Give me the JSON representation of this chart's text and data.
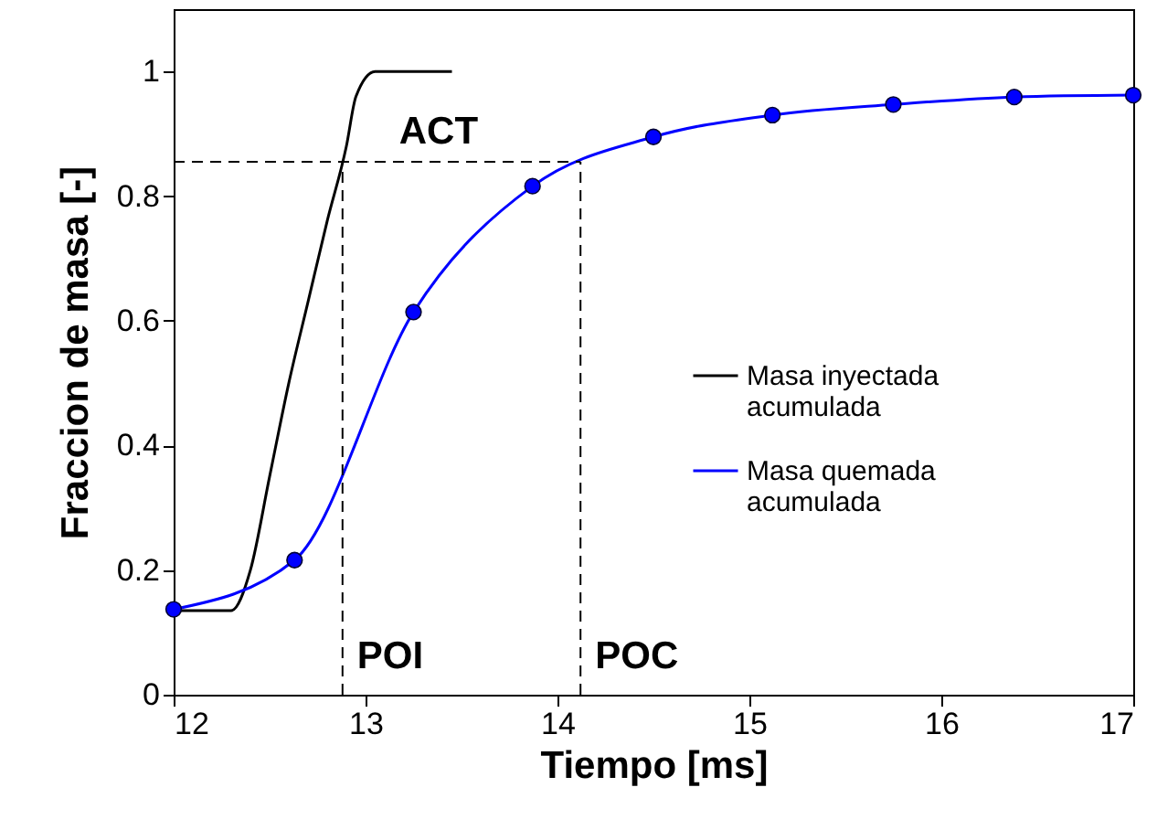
{
  "chart_data": {
    "type": "line",
    "xlabel": "Tiempo [ms]",
    "ylabel": "Fraccion de masa [-]",
    "xlim": [
      12,
      17
    ],
    "ylim": [
      0,
      1.1
    ],
    "xticks": [
      12,
      13,
      14,
      15,
      16,
      17
    ],
    "yticks": [
      0,
      0.2,
      0.4,
      0.6,
      0.8,
      1
    ],
    "grid": false,
    "legend": "right",
    "line_style": "solid",
    "series": [
      {
        "name": "Masa inyectada acumulada",
        "color": "#000000",
        "marker": "none",
        "x": [
          12,
          12.3,
          12.4,
          12.5,
          12.6,
          12.7,
          12.8,
          12.9,
          12.95,
          13.05,
          13.45
        ],
        "values": [
          0.135,
          0.135,
          0.2,
          0.35,
          0.5,
          0.63,
          0.76,
          0.88,
          0.96,
          1,
          1
        ]
      },
      {
        "name": "Masa quemada acumulada",
        "color": "#0000ff",
        "marker": "circle",
        "x": [
          12,
          12.63,
          13.25,
          13.87,
          14.5,
          15.12,
          15.75,
          16.38,
          17
        ],
        "values": [
          0.137,
          0.216,
          0.614,
          0.816,
          0.895,
          0.93,
          0.947,
          0.959,
          0.962
        ]
      }
    ],
    "ref_lines": [
      {
        "axis": "y",
        "value": 0.855,
        "label": null,
        "line_style": "dashed"
      },
      {
        "axis": "x",
        "value": 12.88,
        "label": "POI",
        "line_style": "dashed"
      },
      {
        "axis": "x",
        "value": 14.12,
        "label": "POC",
        "line_style": "dashed"
      }
    ],
    "annotations": [
      "ACT"
    ]
  }
}
